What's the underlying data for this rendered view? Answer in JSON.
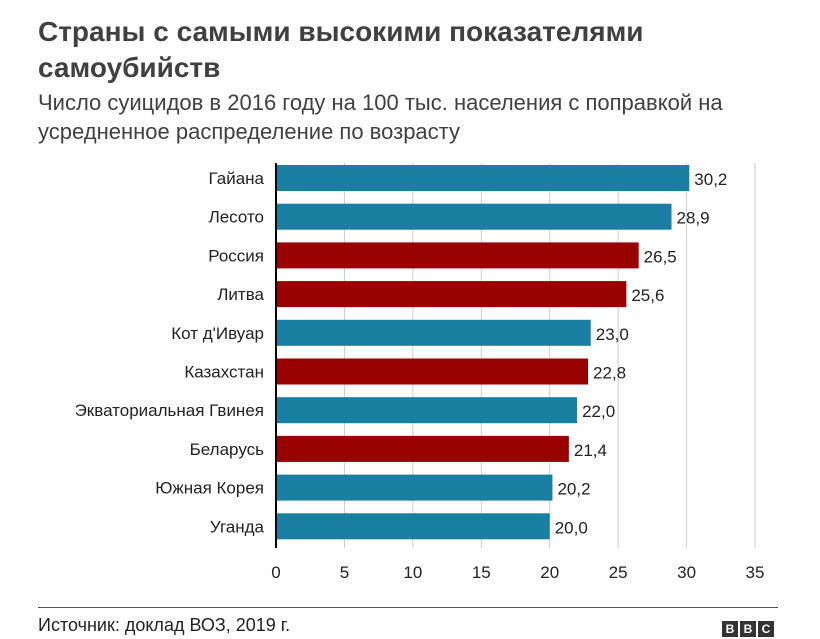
{
  "title": "Страны с самыми высокими показателями самоубийств",
  "subtitle": "Число суицидов в 2016 году на 100 тыс. населения с поправкой на усредненное распределение по возрасту",
  "source": "Источник: доклад ВОЗ, 2019 г.",
  "logo_letters": [
    "B",
    "B",
    "C"
  ],
  "colors": {
    "blue": "#1a7fa2",
    "red": "#990000",
    "grid": "#cccccc",
    "axis": "#000000"
  },
  "chart_data": {
    "type": "bar",
    "orientation": "horizontal",
    "categories": [
      "Гайана",
      "Лесото",
      "Россия",
      "Литва",
      "Кот д'Ивуар",
      "Казахстан",
      "Экваториальная Гвинея",
      "Беларусь",
      "Южная Корея",
      "Уганда"
    ],
    "values": [
      30.2,
      28.9,
      26.5,
      25.6,
      23.0,
      22.8,
      22.0,
      21.4,
      20.2,
      20.0
    ],
    "value_labels": [
      "30,2",
      "28,9",
      "26,5",
      "25,6",
      "23,0",
      "22,8",
      "22,0",
      "21,4",
      "20,2",
      "20,0"
    ],
    "bar_colors": [
      "blue",
      "blue",
      "red",
      "red",
      "blue",
      "red",
      "blue",
      "red",
      "blue",
      "blue"
    ],
    "xlim": [
      0,
      35
    ],
    "xticks": [
      0,
      5,
      10,
      15,
      20,
      25,
      30,
      35
    ],
    "grid": true,
    "legend": "none"
  }
}
